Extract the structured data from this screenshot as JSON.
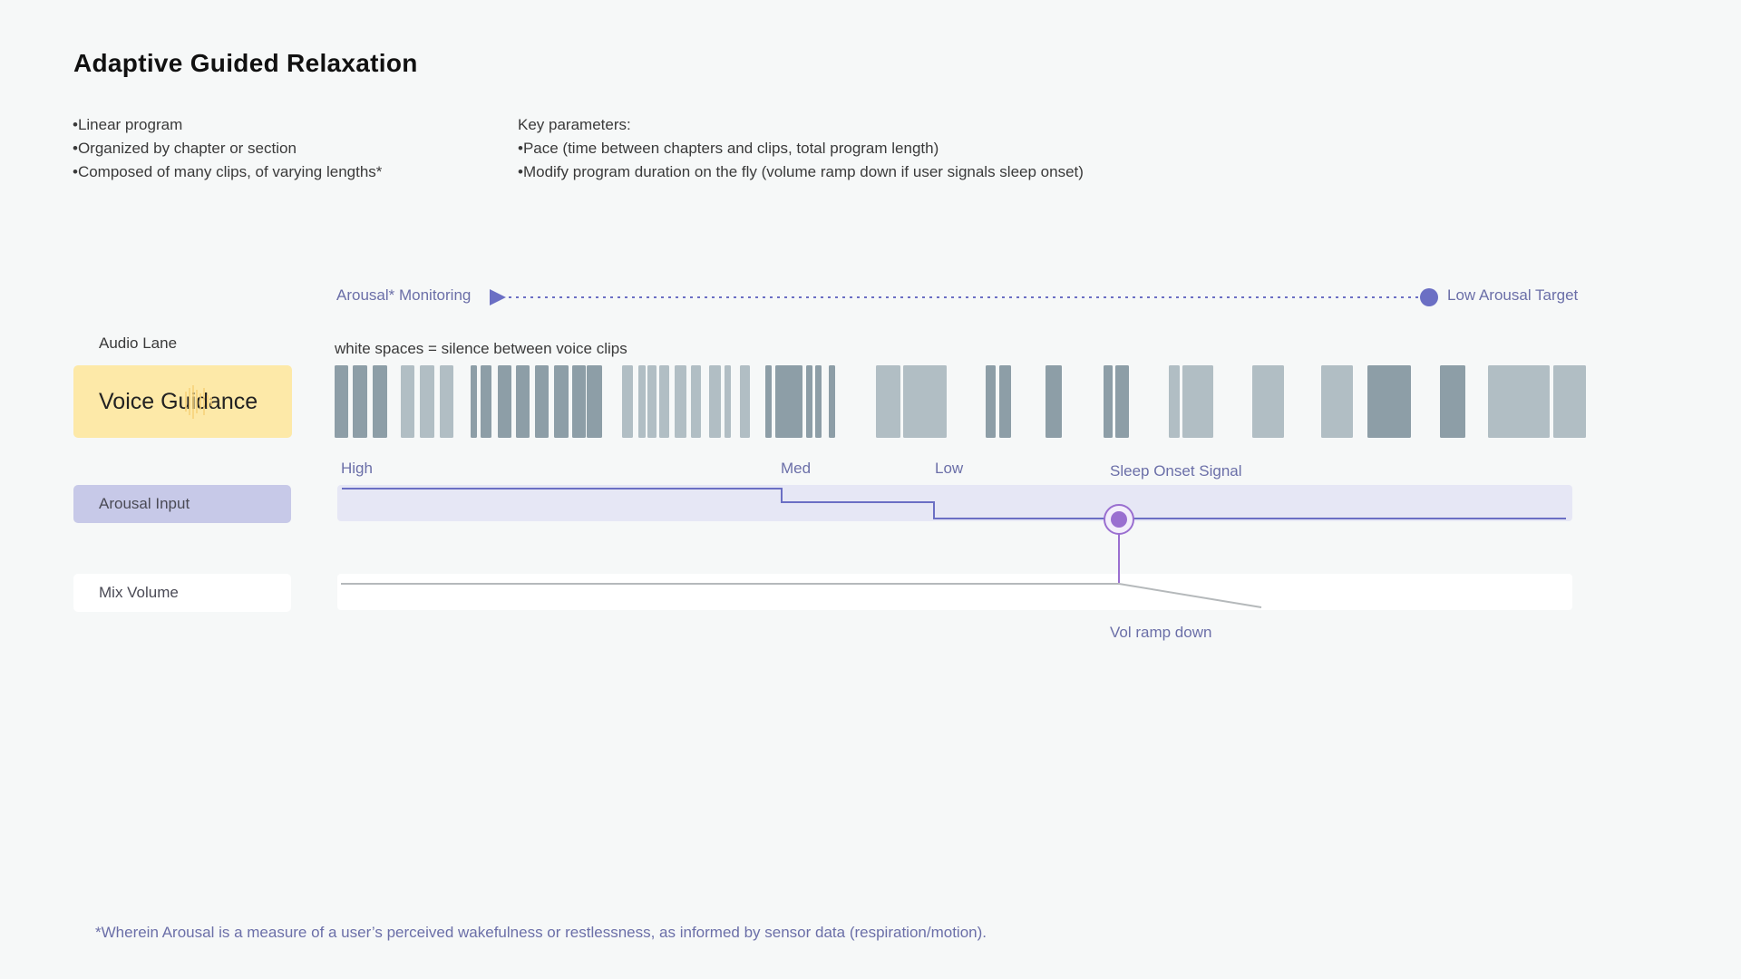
{
  "title": "Adaptive Guided Relaxation",
  "left_bullets": [
    "Linear program",
    "Organized by chapter or section",
    "Composed of many clips, of varying lengths*"
  ],
  "key_params": {
    "heading": "Key parameters:",
    "items": [
      "Pace (time between chapters and clips, total program length)",
      "Modify program duration on the fly (volume ramp down if user signals sleep onset)"
    ]
  },
  "monitoring": {
    "start_label": "Arousal* Monitoring",
    "end_label": "Low Arousal Target"
  },
  "lanes": {
    "audio_lane_label": "Audio Lane",
    "voice_guidance": "Voice Guidance",
    "silence_note": "white spaces = silence between voice clips",
    "arousal_input": "Arousal Input",
    "mix_volume": "Mix Volume"
  },
  "arousal_levels": {
    "high": "High",
    "med": "Med",
    "low": "Low"
  },
  "events": {
    "sleep_onset": "Sleep Onset Signal",
    "vol_ramp": "Vol ramp down"
  },
  "footnote": "*Wherein Arousal is a measure of a user’s perceived wakefulness or restlessness, as informed by sensor data (respiration/motion).",
  "colors": {
    "clip_dark": "#8d9ea7",
    "clip_light": "#b1bec4",
    "accent": "#6b6fc4",
    "marker": "#9a6fd0",
    "volume_line": "#b5b9bb"
  }
}
